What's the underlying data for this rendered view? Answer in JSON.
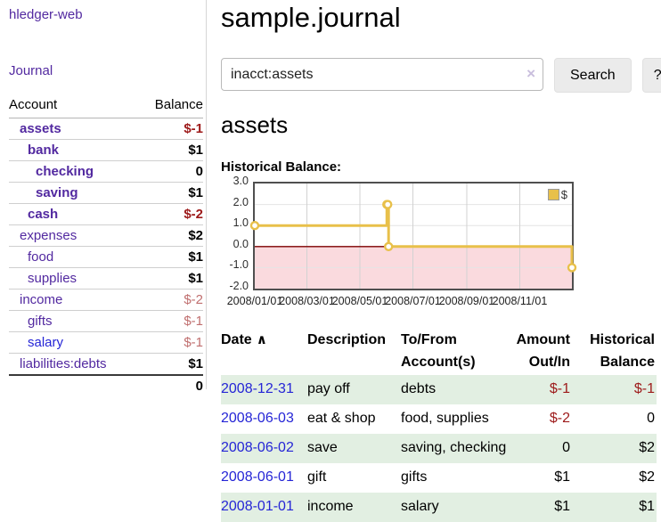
{
  "app": {
    "brand": "hledger-web",
    "journal_link": "Journal"
  },
  "page": {
    "title": "sample.journal",
    "account_heading": "assets",
    "chart_label": "Historical Balance:"
  },
  "search": {
    "value": "inacct:assets",
    "clear_icon": "×",
    "button_label": "Search",
    "help_label": "?"
  },
  "sidebar": {
    "account_header": "Account",
    "balance_header": "Balance",
    "accounts": [
      {
        "name": "assets",
        "depth": 1,
        "balance": "$-1",
        "bold": true,
        "balance_class": "neg-strong",
        "link_class": ""
      },
      {
        "name": "bank",
        "depth": 2,
        "balance": "$1",
        "bold": true,
        "balance_class": "",
        "link_class": ""
      },
      {
        "name": "checking",
        "depth": 3,
        "balance": "0",
        "bold": true,
        "balance_class": "",
        "link_class": ""
      },
      {
        "name": "saving",
        "depth": 3,
        "balance": "$1",
        "bold": true,
        "balance_class": "",
        "link_class": ""
      },
      {
        "name": "cash",
        "depth": 2,
        "balance": "$-2",
        "bold": true,
        "balance_class": "neg-strong",
        "link_class": ""
      },
      {
        "name": "expenses",
        "depth": 1,
        "balance": "$2",
        "bold": false,
        "balance_class": "",
        "link_class": ""
      },
      {
        "name": "food",
        "depth": 2,
        "balance": "$1",
        "bold": false,
        "balance_class": "",
        "link_class": ""
      },
      {
        "name": "supplies",
        "depth": 2,
        "balance": "$1",
        "bold": false,
        "balance_class": "",
        "link_class": ""
      },
      {
        "name": "income",
        "depth": 1,
        "balance": "$-2",
        "bold": false,
        "balance_class": "neg-soft",
        "link_class": ""
      },
      {
        "name": "gifts",
        "depth": 2,
        "balance": "$-1",
        "bold": false,
        "balance_class": "neg-soft",
        "link_class": ""
      },
      {
        "name": "salary",
        "depth": 2,
        "balance": "$-1",
        "bold": false,
        "balance_class": "neg-soft",
        "link_class": "blue"
      },
      {
        "name": "liabilities:debts",
        "depth": 1,
        "balance": "$1",
        "bold": false,
        "balance_class": "",
        "link_class": ""
      }
    ],
    "total": "0"
  },
  "register": {
    "headers": {
      "date": "Date",
      "sort_icon": "∧",
      "description": "Description",
      "accounts": "To/From Account(s)",
      "amount": "Amount Out/In",
      "balance": "Historical Balance"
    },
    "rows": [
      {
        "date": "2008-12-31",
        "description": "pay off",
        "accounts": "debts",
        "amount": "$-1",
        "balance": "$-1",
        "amount_class": "neg",
        "balance_class": "neg"
      },
      {
        "date": "2008-06-03",
        "description": "eat & shop",
        "accounts": "food, supplies",
        "amount": "$-2",
        "balance": "0",
        "amount_class": "neg",
        "balance_class": ""
      },
      {
        "date": "2008-06-02",
        "description": "save",
        "accounts": "saving, checking",
        "amount": "0",
        "balance": "$2",
        "amount_class": "",
        "balance_class": ""
      },
      {
        "date": "2008-06-01",
        "description": "gift",
        "accounts": "gifts",
        "amount": "$1",
        "balance": "$2",
        "amount_class": "",
        "balance_class": ""
      },
      {
        "date": "2008-01-01",
        "description": "income",
        "accounts": "salary",
        "amount": "$1",
        "balance": "$1",
        "amount_class": "",
        "balance_class": ""
      }
    ]
  },
  "chart_data": {
    "type": "line",
    "title": "Historical Balance:",
    "step": true,
    "series": [
      {
        "name": "$",
        "color": "#e8c04a",
        "points": [
          [
            "2008-01-01",
            1
          ],
          [
            "2008-06-01",
            2
          ],
          [
            "2008-06-02",
            2
          ],
          [
            "2008-06-03",
            0
          ],
          [
            "2008-12-31",
            -1
          ]
        ]
      }
    ],
    "x_range": [
      "2008-01-01",
      "2008-12-31"
    ],
    "ylim": [
      -2,
      3
    ],
    "y_ticks": [
      3.0,
      2.0,
      1.0,
      0.0,
      -1.0,
      -2.0
    ],
    "x_tick_dates": [
      "2008-01-01",
      "2008-03-01",
      "2008-05-01",
      "2008-07-01",
      "2008-09-01",
      "2008-11-01"
    ],
    "x_tick_labels": [
      "2008/01/01",
      "2008/03/01",
      "2008/05/01",
      "2008/07/01",
      "2008/09/01",
      "2008/11/01"
    ],
    "legend": {
      "label": "$",
      "position": "top-right"
    },
    "grid": true,
    "negative_fill": "#fadade",
    "zero_line_color": "#7d0000"
  }
}
